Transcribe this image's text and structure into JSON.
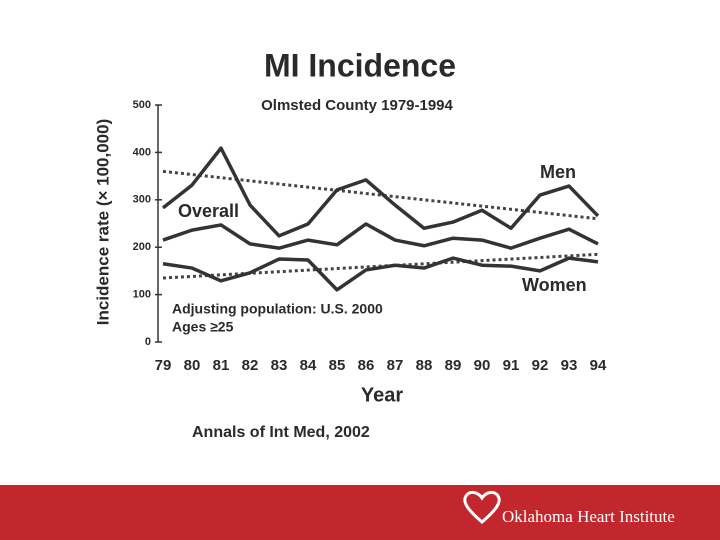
{
  "chart_data": {
    "type": "line",
    "title": "MI Incidence",
    "subtitle": "Olmsted County 1979-1994",
    "y_label": "Incidence rate (× 100,000)",
    "x_label": "Year",
    "categories": [
      "79",
      "80",
      "81",
      "82",
      "83",
      "84",
      "85",
      "86",
      "87",
      "88",
      "89",
      "90",
      "91",
      "92",
      "93",
      "94"
    ],
    "series": [
      {
        "name": "Men",
        "color": "#333333",
        "values": [
          283,
          331,
          409,
          289,
          224,
          249,
          321,
          342,
          289,
          240,
          253,
          278,
          240,
          310,
          329,
          266
        ]
      },
      {
        "name": "Overall",
        "color": "#333333",
        "values": [
          215,
          236,
          247,
          207,
          198,
          215,
          205,
          249,
          215,
          203,
          219,
          215,
          198,
          219,
          238,
          207
        ]
      },
      {
        "name": "Women",
        "color": "#333333",
        "values": [
          165,
          156,
          129,
          146,
          175,
          173,
          110,
          152,
          162,
          156,
          177,
          162,
          160,
          150,
          177,
          169
        ]
      }
    ],
    "trend_lines": [
      [
        360,
        260
      ],
      [
        135,
        185
      ]
    ],
    "ylim": [
      0,
      500
    ],
    "yticks": [
      0,
      100,
      200,
      300,
      400,
      500
    ],
    "annotations": [
      "Adjusting population:  U.S. 2000",
      "Ages ≥25"
    ],
    "source": "Annals of Int Med, 2002",
    "footer": "Oklahoma Heart Institute"
  }
}
